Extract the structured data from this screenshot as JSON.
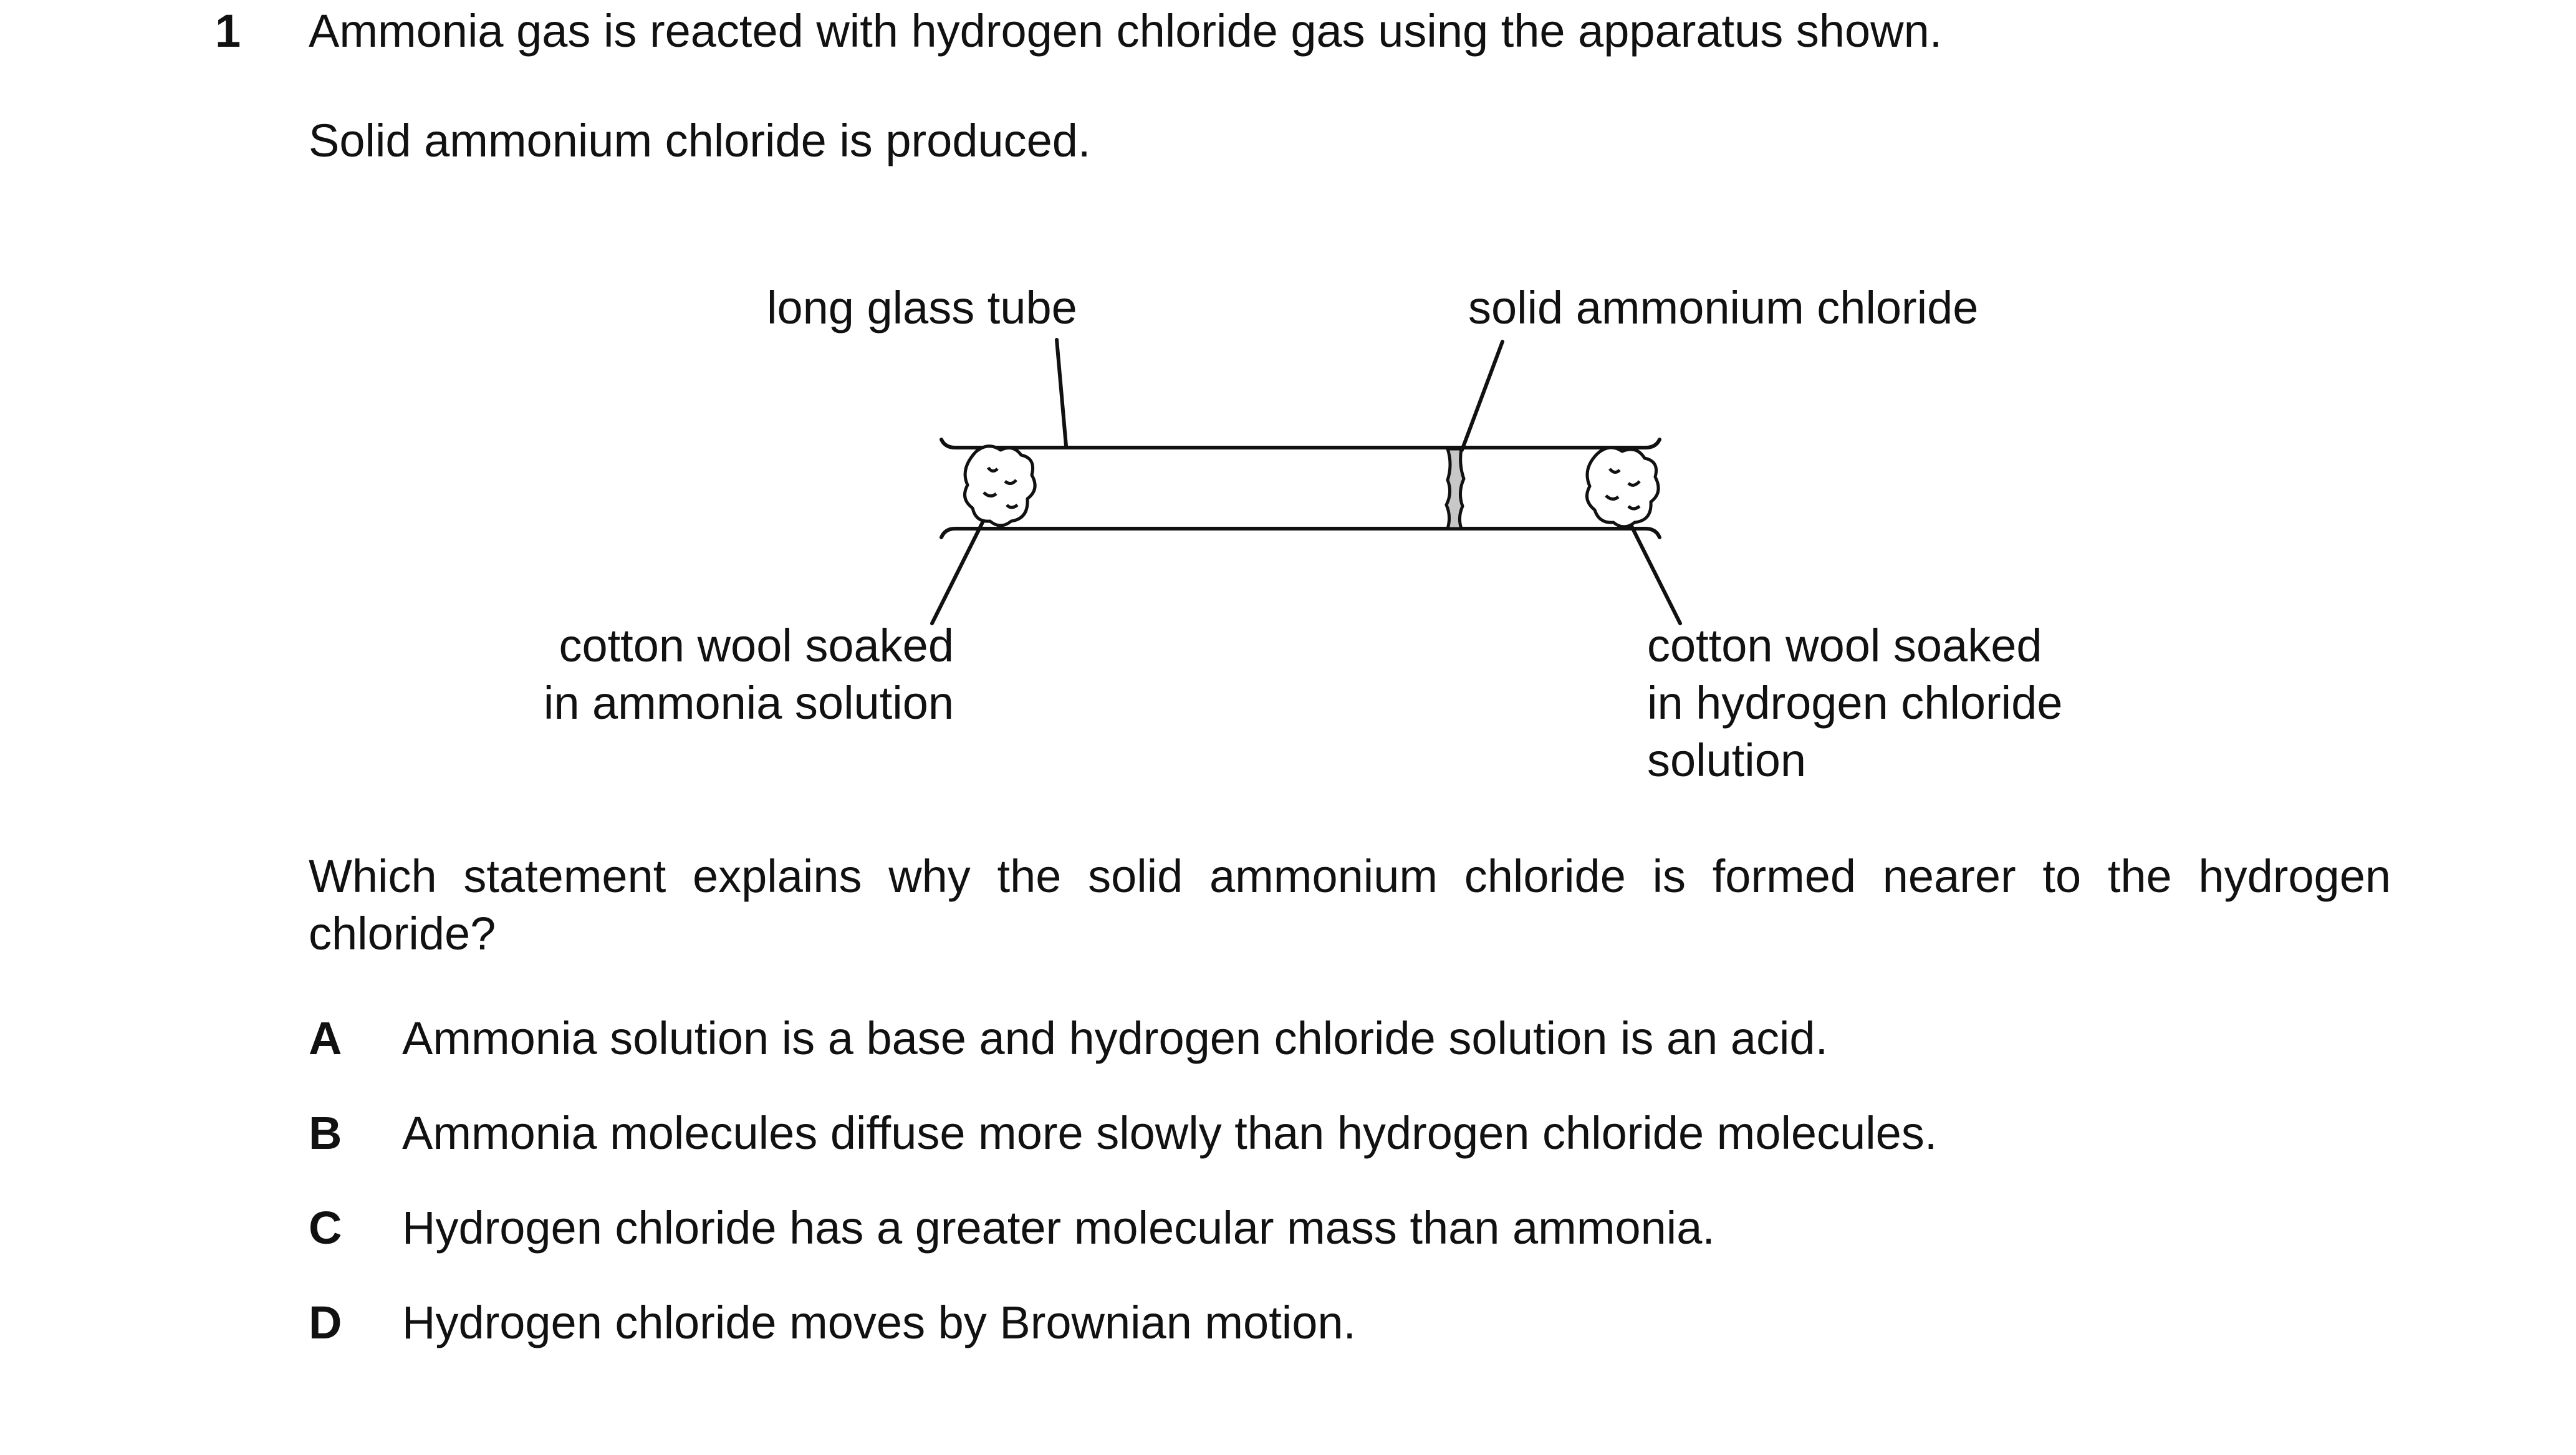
{
  "question": {
    "number": "1",
    "intro_line1": "Ammonia gas is reacted with hydrogen chloride gas using the apparatus shown.",
    "intro_line2": "Solid ammonium chloride is produced.",
    "prompt": "Which statement explains why the solid ammonium chloride is formed nearer to the hydrogen chloride?"
  },
  "diagram": {
    "labels": {
      "tube": "long glass tube",
      "solid": "solid ammonium chloride",
      "left_wool_line1": "cotton wool soaked",
      "left_wool_line2": "in ammonia solution",
      "right_wool_line1": "cotton wool soaked",
      "right_wool_line2": "in hydrogen chloride",
      "right_wool_line3": "solution"
    },
    "colors": {
      "line": "#111111",
      "solid_fill": "#c8c8c8"
    }
  },
  "options": [
    {
      "letter": "A",
      "text": "Ammonia solution is a base and hydrogen chloride solution is an acid."
    },
    {
      "letter": "B",
      "text": "Ammonia molecules diffuse more slowly than hydrogen chloride molecules."
    },
    {
      "letter": "C",
      "text": "Hydrogen chloride has a greater molecular mass than ammonia."
    },
    {
      "letter": "D",
      "text": "Hydrogen chloride moves by Brownian motion."
    }
  ]
}
